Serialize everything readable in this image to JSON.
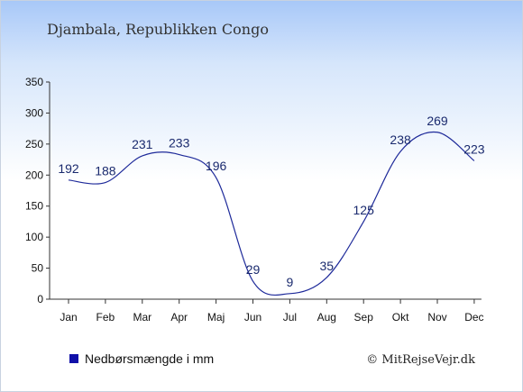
{
  "title": "Djambala, Republikken Congo",
  "legend": {
    "label": "Nedbørsmængde i mm",
    "color": "#1010a8"
  },
  "credit": "© MitRejseVejr.dk",
  "colors": {
    "line": "#1e2a9a",
    "axis": "#333333",
    "label": "#1a2a6e"
  },
  "chart_data": {
    "type": "line",
    "categories": [
      "Jan",
      "Feb",
      "Mar",
      "Apr",
      "Maj",
      "Jun",
      "Jul",
      "Aug",
      "Sep",
      "Okt",
      "Nov",
      "Dec"
    ],
    "series": [
      {
        "name": "Nedbørsmængde i mm",
        "values": [
          192,
          188,
          231,
          233,
          196,
          29,
          9,
          35,
          125,
          238,
          269,
          223
        ]
      }
    ],
    "ylim": [
      0,
      350
    ],
    "yticks": [
      0,
      50,
      100,
      150,
      200,
      250,
      300,
      350
    ],
    "grid": false,
    "legend_position": "bottom-left"
  }
}
